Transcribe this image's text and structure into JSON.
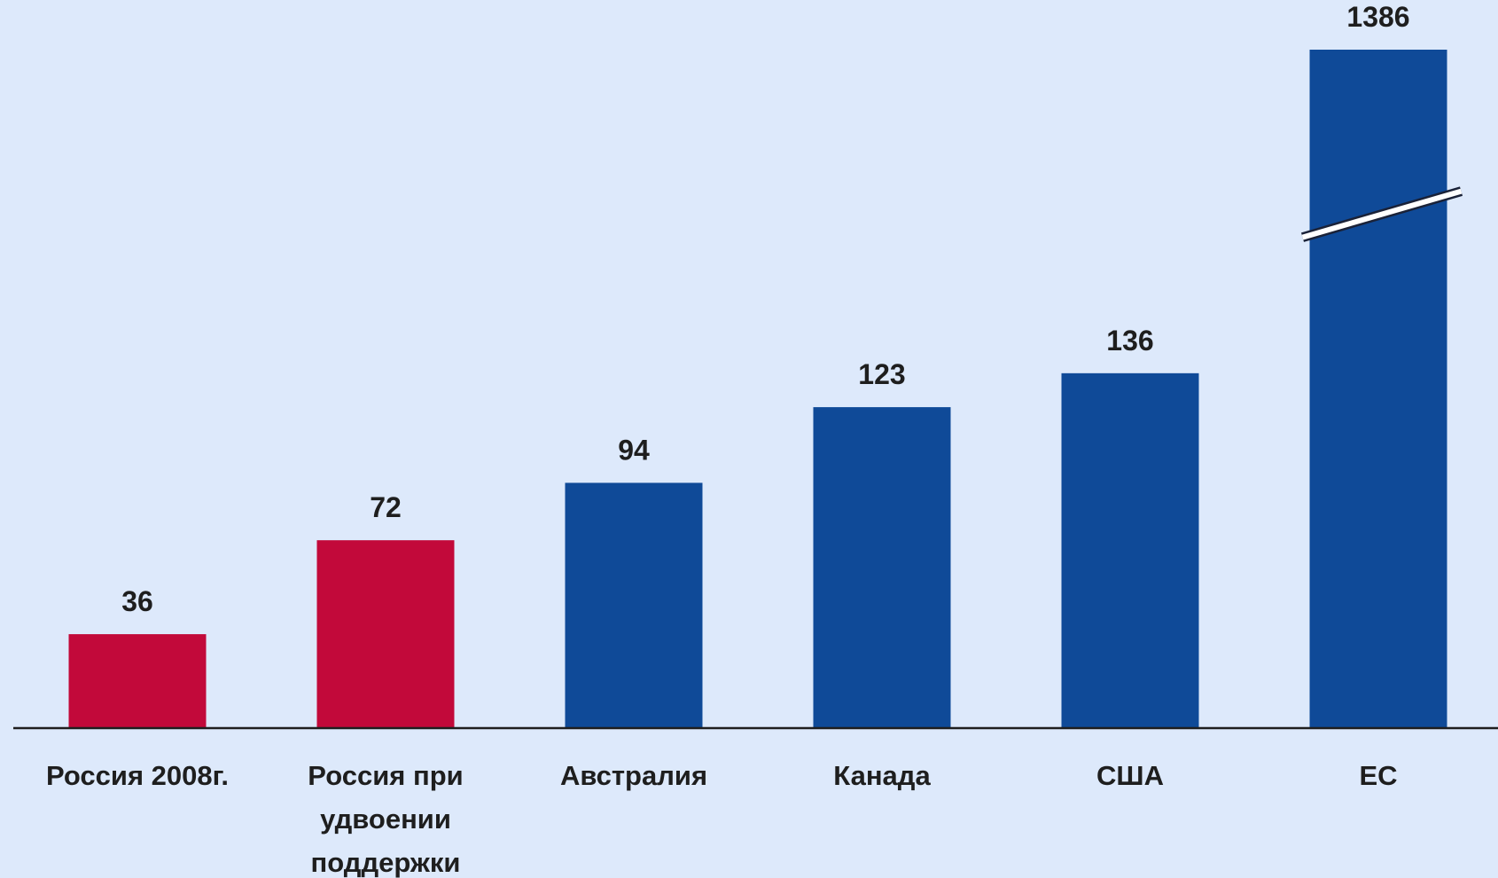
{
  "chart_data": {
    "type": "bar",
    "categories": [
      "Россия 2008г.",
      "Россия при удвоении поддержки",
      "Австралия",
      "Канада",
      "США",
      "ЕС"
    ],
    "values": [
      36,
      72,
      94,
      123,
      136,
      1386
    ],
    "colors": [
      "#c2093a",
      "#c2093a",
      "#0f4a98",
      "#0f4a98",
      "#0f4a98",
      "#0f4a98"
    ],
    "ylim": [
      0,
      260
    ],
    "axis_break": true
  }
}
